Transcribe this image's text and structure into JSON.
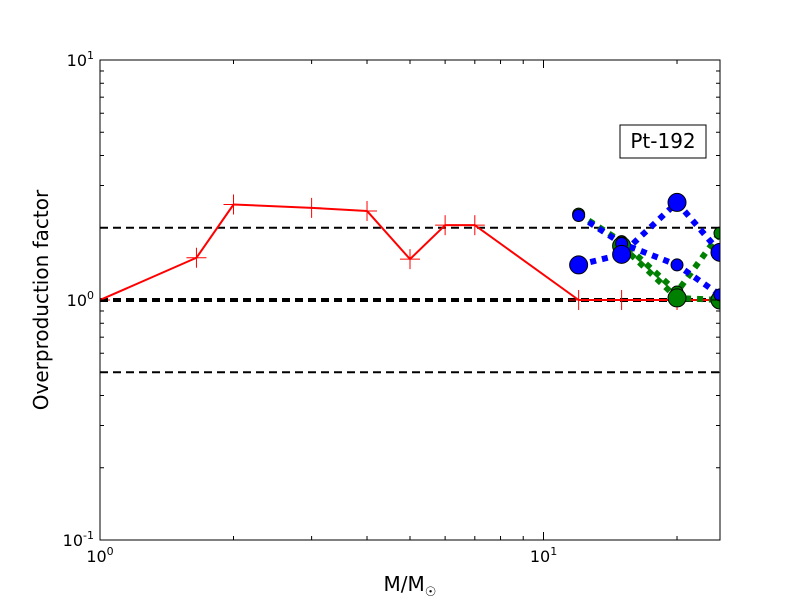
{
  "chart_data": {
    "type": "line",
    "title": "",
    "xlabel": "M/M",
    "xlabel_subscript": "☉",
    "ylabel": "Overproduction factor",
    "annotation": "Pt-192",
    "x_scale": "log",
    "y_scale": "log",
    "xlim": [
      1,
      25
    ],
    "ylim": [
      0.1,
      10
    ],
    "x_ticks": [
      {
        "value": 1,
        "base": "10",
        "exp": "0"
      },
      {
        "value": 10,
        "base": "10",
        "exp": "1"
      }
    ],
    "y_ticks": [
      {
        "value": 0.1,
        "base": "10",
        "exp": "-1"
      },
      {
        "value": 1,
        "base": "10",
        "exp": "0"
      },
      {
        "value": 10,
        "base": "10",
        "exp": "1"
      }
    ],
    "reference_lines": [
      {
        "y": 2.0,
        "style": "dashed",
        "weight": "thin"
      },
      {
        "y": 1.0,
        "style": "dashed",
        "weight": "thick"
      },
      {
        "y": 0.5,
        "style": "dashed",
        "weight": "thin"
      }
    ],
    "series": [
      {
        "color": "#ff0000",
        "line_style": "solid",
        "marker": "plus",
        "x": [
          1.0,
          1.65,
          2.0,
          3.0,
          4.0,
          5.0,
          6.0,
          7.0,
          12.0,
          15.0,
          20.0,
          25.0
        ],
        "y": [
          1.0,
          1.5,
          2.5,
          2.42,
          2.35,
          1.48,
          2.05,
          2.05,
          1.0,
          1.0,
          1.0,
          1.0
        ]
      },
      {
        "color": "#008000",
        "line_style": "dotted",
        "marker": "circle",
        "x": [
          12.0,
          15.0,
          20.0,
          25.0
        ],
        "y": [
          2.28,
          1.75,
          1.08,
          1.9
        ]
      },
      {
        "color": "#008000",
        "line_style": "dotted",
        "marker": "circle",
        "x": [
          15.0,
          20.0,
          25.0
        ],
        "y": [
          1.68,
          1.02,
          1.0
        ]
      },
      {
        "color": "#0000ff",
        "line_style": "dotted",
        "marker": "circle",
        "x": [
          12.0,
          15.0,
          20.0,
          25.0
        ],
        "y": [
          2.25,
          1.72,
          1.4,
          1.05
        ]
      },
      {
        "color": "#0000ff",
        "line_style": "dotted",
        "marker": "circle",
        "x": [
          12.0,
          15.0,
          20.0,
          25.0
        ],
        "y": [
          1.4,
          1.55,
          2.55,
          1.58
        ]
      }
    ]
  }
}
